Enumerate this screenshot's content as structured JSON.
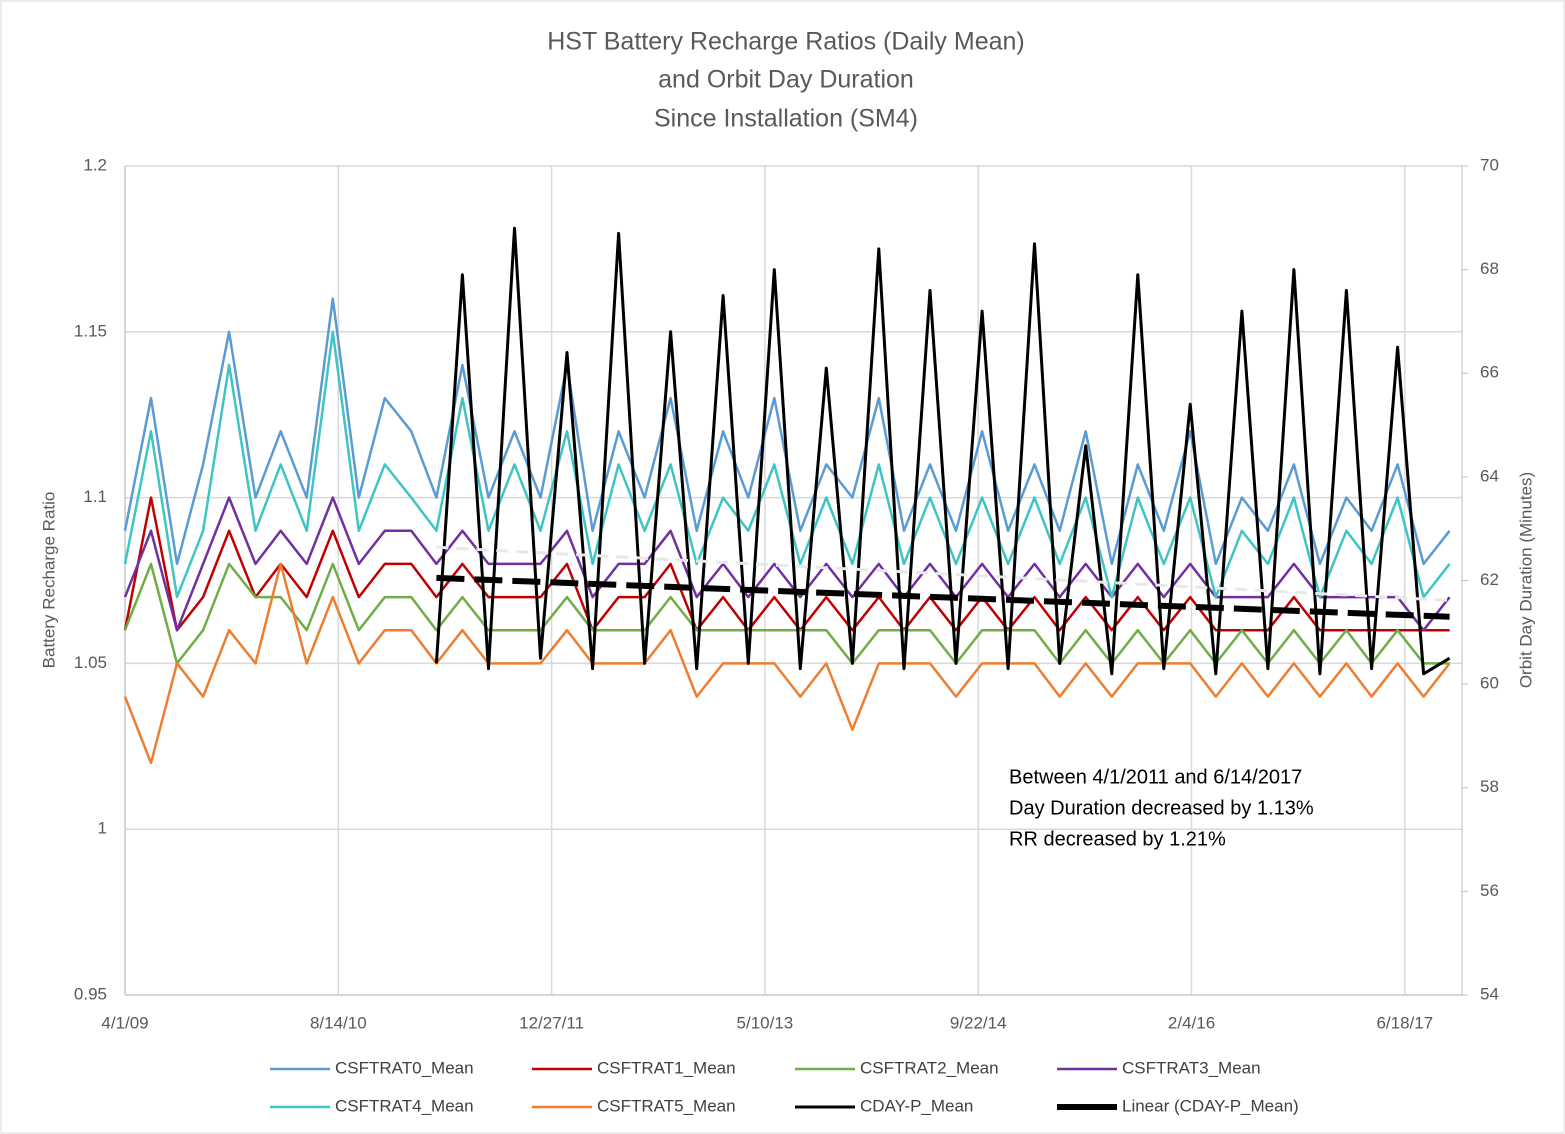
{
  "chart_data": {
    "type": "line",
    "title": [
      "HST Battery Recharge Ratios (Daily Mean)",
      "and Orbit Day Duration",
      "Since Installation (SM4)"
    ],
    "y_label": "Battery Recharge Ratio",
    "y2_label": "Orbit Day Duration (Minutes)",
    "annotation": [
      "Between 4/1/2011 and 6/14/2017",
      "Day Duration decreased by 1.13%",
      "RR decreased by 1.21%"
    ],
    "xlim": [
      "2009-04-01",
      "2017-10-30"
    ],
    "xticks": [
      {
        "value": "2009-04-01",
        "label": "4/1/09"
      },
      {
        "value": "2010-08-14",
        "label": "8/14/10"
      },
      {
        "value": "2011-12-27",
        "label": "12/27/11"
      },
      {
        "value": "2013-05-10",
        "label": "5/10/13"
      },
      {
        "value": "2014-09-22",
        "label": "9/22/14"
      },
      {
        "value": "2016-02-04",
        "label": "2/4/16"
      },
      {
        "value": "2017-06-18",
        "label": "6/18/17"
      }
    ],
    "ylim": [
      0.95,
      1.2
    ],
    "yticks": [
      0.95,
      1,
      1.05,
      1.1,
      1.15,
      1.2
    ],
    "y2lim": [
      54,
      70
    ],
    "y2ticks": [
      54,
      56,
      58,
      60,
      62,
      64,
      66,
      68,
      70
    ],
    "grid": true,
    "legend": "bottom",
    "x": [
      "2009-04-01",
      "2009-06-01",
      "2009-08-01",
      "2009-10-01",
      "2009-12-01",
      "2010-02-01",
      "2010-04-01",
      "2010-06-01",
      "2010-08-01",
      "2010-10-01",
      "2010-12-01",
      "2011-02-01",
      "2011-04-01",
      "2011-06-01",
      "2011-08-01",
      "2011-10-01",
      "2011-12-01",
      "2012-02-01",
      "2012-04-01",
      "2012-06-01",
      "2012-08-01",
      "2012-10-01",
      "2012-12-01",
      "2013-02-01",
      "2013-04-01",
      "2013-06-01",
      "2013-08-01",
      "2013-10-01",
      "2013-12-01",
      "2014-02-01",
      "2014-04-01",
      "2014-06-01",
      "2014-08-01",
      "2014-10-01",
      "2014-12-01",
      "2015-02-01",
      "2015-04-01",
      "2015-06-01",
      "2015-08-01",
      "2015-10-01",
      "2015-12-01",
      "2016-02-01",
      "2016-04-01",
      "2016-06-01",
      "2016-08-01",
      "2016-10-01",
      "2016-12-01",
      "2017-02-01",
      "2017-04-01",
      "2017-06-01",
      "2017-08-01",
      "2017-10-01"
    ],
    "series": [
      {
        "name": "CSFTRAT0_Mean",
        "color": "#5b9bd5",
        "width": 2.5,
        "values": [
          1.09,
          1.13,
          1.08,
          1.11,
          1.15,
          1.1,
          1.12,
          1.1,
          1.16,
          1.1,
          1.13,
          1.12,
          1.1,
          1.14,
          1.1,
          1.12,
          1.1,
          1.14,
          1.09,
          1.12,
          1.1,
          1.13,
          1.09,
          1.12,
          1.1,
          1.13,
          1.09,
          1.11,
          1.1,
          1.13,
          1.09,
          1.11,
          1.09,
          1.12,
          1.09,
          1.11,
          1.09,
          1.12,
          1.08,
          1.11,
          1.09,
          1.12,
          1.08,
          1.1,
          1.09,
          1.11,
          1.08,
          1.1,
          1.09,
          1.11,
          1.08,
          1.09
        ]
      },
      {
        "name": "CSFTRAT1_Mean",
        "color": "#c00000",
        "width": 2.5,
        "values": [
          1.06,
          1.1,
          1.06,
          1.07,
          1.09,
          1.07,
          1.08,
          1.07,
          1.09,
          1.07,
          1.08,
          1.08,
          1.07,
          1.08,
          1.07,
          1.07,
          1.07,
          1.08,
          1.06,
          1.07,
          1.07,
          1.08,
          1.06,
          1.07,
          1.06,
          1.07,
          1.06,
          1.07,
          1.06,
          1.07,
          1.06,
          1.07,
          1.06,
          1.07,
          1.06,
          1.07,
          1.06,
          1.07,
          1.06,
          1.07,
          1.06,
          1.07,
          1.06,
          1.06,
          1.06,
          1.07,
          1.06,
          1.06,
          1.06,
          1.06,
          1.06,
          1.06
        ]
      },
      {
        "name": "CSFTRAT2_Mean",
        "color": "#70ad47",
        "width": 2.5,
        "values": [
          1.06,
          1.08,
          1.05,
          1.06,
          1.08,
          1.07,
          1.07,
          1.06,
          1.08,
          1.06,
          1.07,
          1.07,
          1.06,
          1.07,
          1.06,
          1.06,
          1.06,
          1.07,
          1.06,
          1.06,
          1.06,
          1.07,
          1.06,
          1.06,
          1.06,
          1.06,
          1.06,
          1.06,
          1.05,
          1.06,
          1.06,
          1.06,
          1.05,
          1.06,
          1.06,
          1.06,
          1.05,
          1.06,
          1.05,
          1.06,
          1.05,
          1.06,
          1.05,
          1.06,
          1.05,
          1.06,
          1.05,
          1.06,
          1.05,
          1.06,
          1.05,
          1.05
        ]
      },
      {
        "name": "CSFTRAT3_Mean",
        "color": "#7030a0",
        "width": 2.5,
        "values": [
          1.07,
          1.09,
          1.06,
          1.08,
          1.1,
          1.08,
          1.09,
          1.08,
          1.1,
          1.08,
          1.09,
          1.09,
          1.08,
          1.09,
          1.08,
          1.08,
          1.08,
          1.09,
          1.07,
          1.08,
          1.08,
          1.09,
          1.07,
          1.08,
          1.07,
          1.08,
          1.07,
          1.08,
          1.07,
          1.08,
          1.07,
          1.08,
          1.07,
          1.08,
          1.07,
          1.08,
          1.07,
          1.08,
          1.07,
          1.08,
          1.07,
          1.08,
          1.07,
          1.07,
          1.07,
          1.08,
          1.07,
          1.07,
          1.07,
          1.07,
          1.06,
          1.07
        ]
      },
      {
        "name": "CSFTRAT4_Mean",
        "color": "#3fc4c4",
        "width": 2.5,
        "values": [
          1.08,
          1.12,
          1.07,
          1.09,
          1.14,
          1.09,
          1.11,
          1.09,
          1.15,
          1.09,
          1.11,
          1.1,
          1.09,
          1.13,
          1.09,
          1.11,
          1.09,
          1.12,
          1.08,
          1.11,
          1.09,
          1.11,
          1.08,
          1.1,
          1.09,
          1.11,
          1.08,
          1.1,
          1.08,
          1.11,
          1.08,
          1.1,
          1.08,
          1.1,
          1.08,
          1.1,
          1.08,
          1.1,
          1.07,
          1.1,
          1.08,
          1.1,
          1.07,
          1.09,
          1.08,
          1.1,
          1.07,
          1.09,
          1.08,
          1.1,
          1.07,
          1.08
        ]
      },
      {
        "name": "CSFTRAT5_Mean",
        "color": "#ed7d31",
        "width": 2.5,
        "values": [
          1.04,
          1.02,
          1.05,
          1.04,
          1.06,
          1.05,
          1.08,
          1.05,
          1.07,
          1.05,
          1.06,
          1.06,
          1.05,
          1.06,
          1.05,
          1.05,
          1.05,
          1.06,
          1.05,
          1.05,
          1.05,
          1.06,
          1.04,
          1.05,
          1.05,
          1.05,
          1.04,
          1.05,
          1.03,
          1.05,
          1.05,
          1.05,
          1.04,
          1.05,
          1.05,
          1.05,
          1.04,
          1.05,
          1.04,
          1.05,
          1.05,
          1.05,
          1.04,
          1.05,
          1.04,
          1.05,
          1.04,
          1.05,
          1.04,
          1.05,
          1.04,
          1.05
        ]
      },
      {
        "name": "CDAY-P_Mean",
        "color": "#000000",
        "width": 3,
        "axis": "y2",
        "values": [
          null,
          null,
          null,
          null,
          null,
          null,
          null,
          null,
          null,
          null,
          null,
          null,
          60.4,
          67.9,
          60.3,
          68.8,
          60.5,
          66.4,
          60.3,
          68.7,
          60.4,
          66.8,
          60.3,
          67.5,
          60.4,
          68.0,
          60.3,
          66.1,
          60.4,
          68.4,
          60.3,
          67.6,
          60.4,
          67.2,
          60.3,
          68.5,
          60.4,
          64.6,
          60.2,
          67.9,
          60.3,
          65.4,
          60.2,
          67.2,
          60.3,
          68.0,
          60.2,
          67.6,
          60.3,
          66.5,
          60.2,
          60.5
        ]
      },
      {
        "name": "Linear (CDAY-P_Mean)",
        "color": "#000000",
        "width": 6,
        "dash": "28 10",
        "axis": "y2",
        "x": [
          "2011-04-01",
          "2017-10-01"
        ],
        "values": [
          62.05,
          61.3
        ]
      },
      {
        "color": "#e8e8e8",
        "width": 3,
        "dash": "12 8",
        "x": [
          "2011-04-01",
          "2017-10-01"
        ],
        "values": [
          1.085,
          1.069
        ]
      }
    ]
  }
}
